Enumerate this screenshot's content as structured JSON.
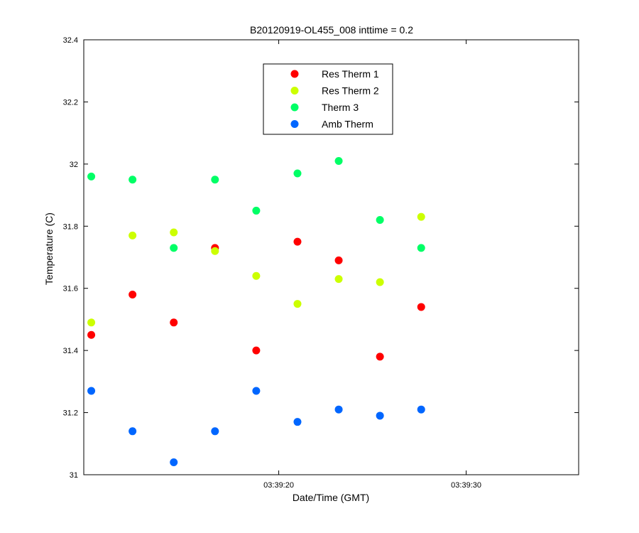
{
  "chart_data": {
    "type": "scatter",
    "title": "B20120919-OL455_008 inttime = 0.2",
    "xlabel": "Date/Time (GMT)",
    "ylabel": "Temperature (C)",
    "x_unit": "seconds after 03:39:00 GMT",
    "xlim": [
      9.6,
      36.0
    ],
    "ylim": [
      31.0,
      32.4
    ],
    "x_ticks": [
      {
        "value": 20,
        "label": "03:39:20"
      },
      {
        "value": 30,
        "label": "03:39:30"
      }
    ],
    "y_ticks": [
      {
        "value": 31.0,
        "label": "31"
      },
      {
        "value": 31.2,
        "label": "31.2"
      },
      {
        "value": 31.4,
        "label": "31.4"
      },
      {
        "value": 31.6,
        "label": "31.6"
      },
      {
        "value": 31.8,
        "label": "31.8"
      },
      {
        "value": 32.0,
        "label": "32"
      },
      {
        "value": 32.2,
        "label": "32.2"
      },
      {
        "value": 32.4,
        "label": "32.4"
      }
    ],
    "x": [
      10.0,
      12.2,
      14.4,
      16.6,
      18.8,
      21.0,
      23.2,
      25.4,
      27.6
    ],
    "grid": false,
    "legend_position": "top-center",
    "series": [
      {
        "name": "Res Therm 1",
        "color": "#ff0000",
        "values": [
          31.45,
          31.58,
          31.49,
          31.73,
          31.4,
          31.75,
          31.69,
          31.38,
          31.54
        ]
      },
      {
        "name": "Res Therm 2",
        "color": "#ccff00",
        "values": [
          31.49,
          31.77,
          31.78,
          31.72,
          31.64,
          31.55,
          31.63,
          31.62,
          31.83
        ]
      },
      {
        "name": "Therm 3",
        "color": "#00ff66",
        "values": [
          31.96,
          31.95,
          31.73,
          31.95,
          31.85,
          31.97,
          32.01,
          31.82,
          31.73
        ]
      },
      {
        "name": "Amb Therm",
        "color": "#0066ff",
        "values": [
          31.27,
          31.14,
          31.04,
          31.14,
          31.27,
          31.17,
          31.21,
          31.19,
          31.21
        ]
      }
    ]
  }
}
